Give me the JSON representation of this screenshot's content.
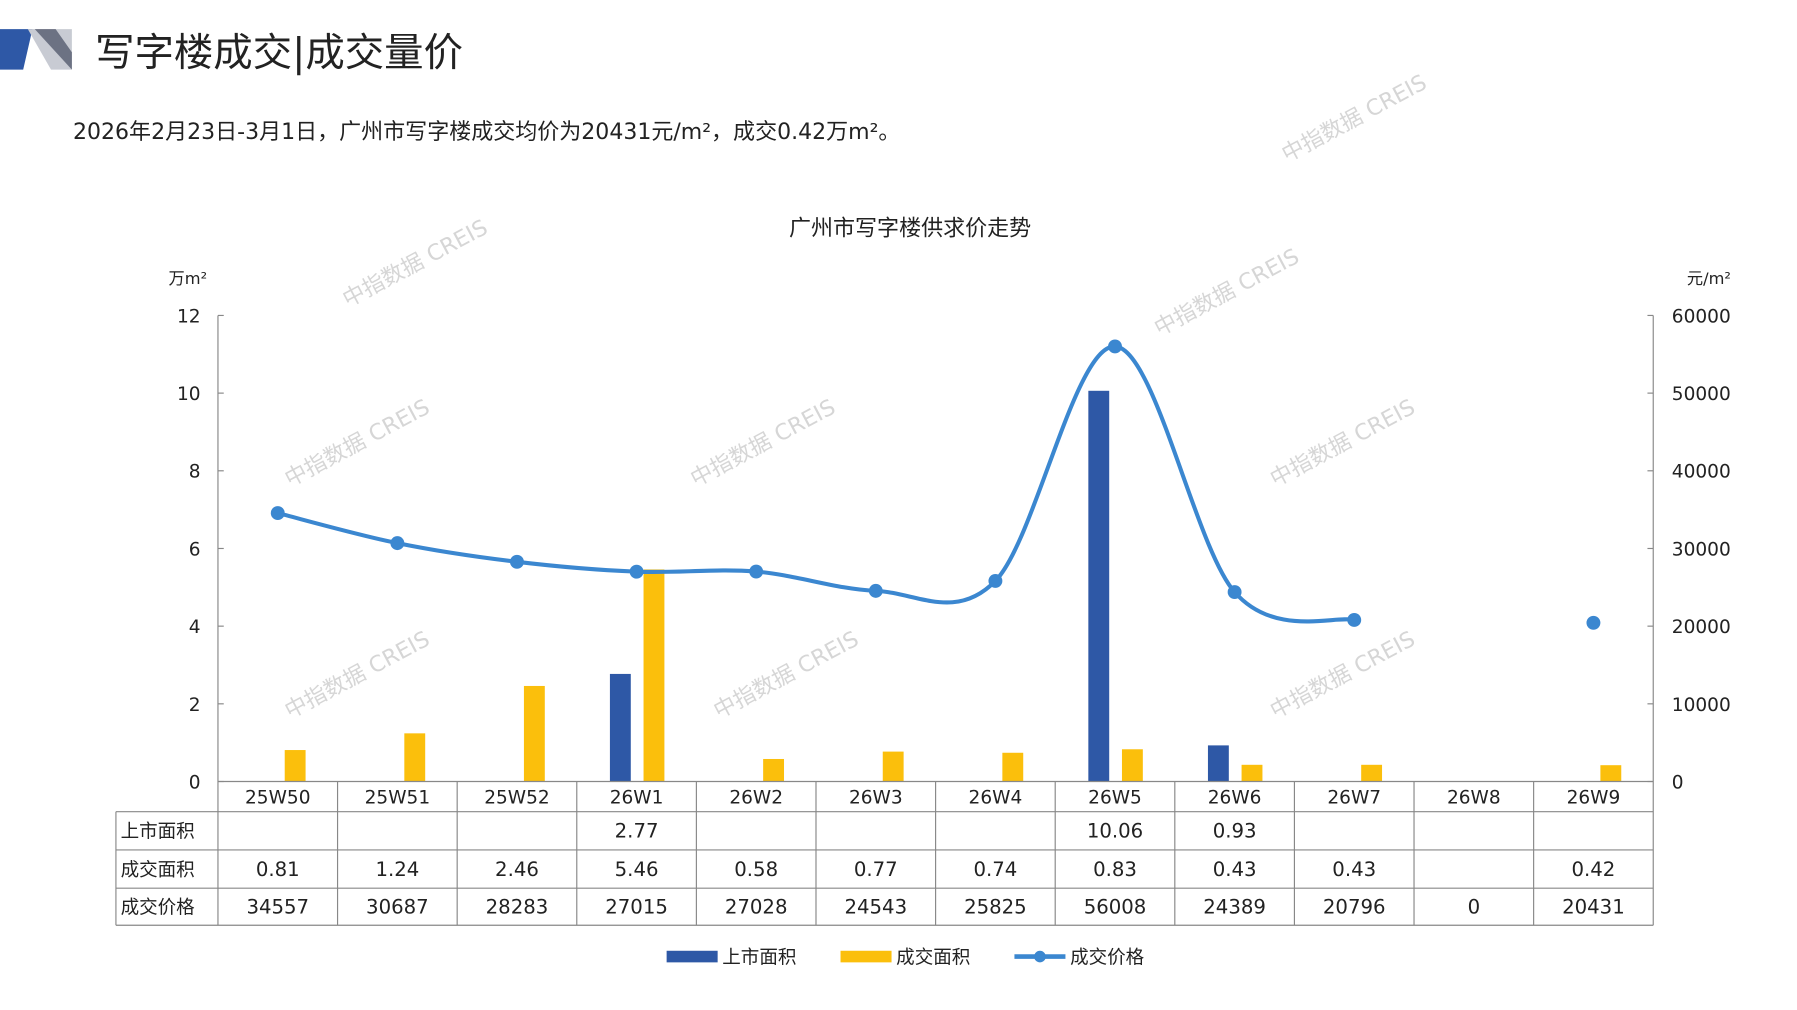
{
  "header": {
    "title": "写字楼成交|成交量价"
  },
  "summary": "2026年2月23日-3月1日，广州市写字楼成交均价为20431元/m²，成交0.42万m²。",
  "watermark": "中指数据 CREIS",
  "chart_data": {
    "type": "bar",
    "title": "广州市写字楼供求价走势",
    "ylabel_left": "万m²",
    "ylabel_right": "元/m²",
    "ylim_left": [
      0,
      12
    ],
    "ylim_right": [
      0,
      60000
    ],
    "yticks_left": [
      "0",
      "2",
      "4",
      "6",
      "8",
      "10",
      "12"
    ],
    "yticks_right": [
      "0",
      "10000",
      "20000",
      "30000",
      "40000",
      "50000",
      "60000"
    ],
    "categories": [
      "25W50",
      "25W51",
      "25W52",
      "26W1",
      "26W2",
      "26W3",
      "26W4",
      "26W5",
      "26W6",
      "26W7",
      "26W8",
      "26W9"
    ],
    "series": [
      {
        "name": "上市面积",
        "type": "bar",
        "axis": "left",
        "color": "#2e58a6",
        "values": [
          null,
          null,
          null,
          2.77,
          null,
          null,
          null,
          10.06,
          0.93,
          null,
          null,
          null
        ],
        "labels": [
          "",
          "",
          "",
          "2.77",
          "",
          "",
          "",
          "10.06",
          "0.93",
          "",
          "",
          ""
        ]
      },
      {
        "name": "成交面积",
        "type": "bar",
        "axis": "left",
        "color": "#fbbf0c",
        "values": [
          0.81,
          1.24,
          2.46,
          5.46,
          0.58,
          0.77,
          0.74,
          0.83,
          0.43,
          0.43,
          null,
          0.42
        ],
        "labels": [
          "0.81",
          "1.24",
          "2.46",
          "5.46",
          "0.58",
          "0.77",
          "0.74",
          "0.83",
          "0.43",
          "0.43",
          "",
          "0.42"
        ]
      },
      {
        "name": "成交价格",
        "type": "line",
        "axis": "right",
        "color": "#3b87d0",
        "values": [
          34557,
          30687,
          28283,
          27015,
          27028,
          24543,
          25825,
          56008,
          24389,
          20796,
          0,
          20431
        ],
        "labels": [
          "34557",
          "30687",
          "28283",
          "27015",
          "27028",
          "24543",
          "25825",
          "56008",
          "24389",
          "20796",
          "0",
          "20431"
        ]
      }
    ],
    "legend": "bottom",
    "data_table": true
  }
}
